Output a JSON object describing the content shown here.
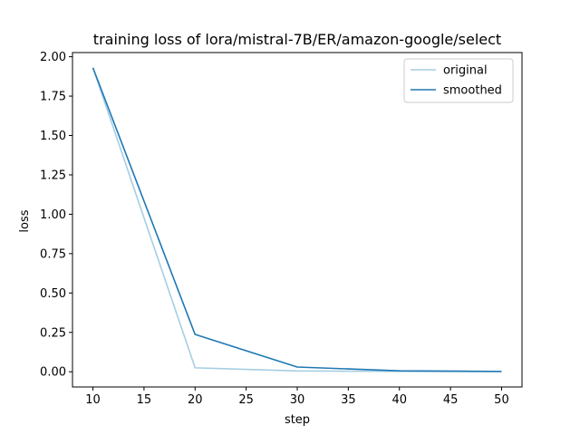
{
  "chart_data": {
    "type": "line",
    "title": "training loss of lora/mistral-7B/ER/amazon-google/select",
    "xlabel": "step",
    "ylabel": "loss",
    "xlim": [
      8.0,
      52.0
    ],
    "ylim": [
      -0.0965,
      2.0265
    ],
    "xticks": [
      10,
      15,
      20,
      25,
      30,
      35,
      40,
      45,
      50
    ],
    "yticks": [
      0.0,
      0.25,
      0.5,
      0.75,
      1.0,
      1.25,
      1.5,
      1.75,
      2.0
    ],
    "xtick_labels": [
      "10",
      "15",
      "20",
      "25",
      "30",
      "35",
      "40",
      "45",
      "50"
    ],
    "ytick_labels": [
      "0.00",
      "0.25",
      "0.50",
      "0.75",
      "1.00",
      "1.25",
      "1.50",
      "1.75",
      "2.00"
    ],
    "x": [
      10,
      20,
      30,
      40,
      50
    ],
    "series": [
      {
        "name": "original",
        "color": "#a6cee3",
        "values": [
          1.93,
          0.025,
          0.005,
          0.002,
          0.001
        ]
      },
      {
        "name": "smoothed",
        "color": "#1f78b4",
        "values": [
          1.93,
          0.237,
          0.03,
          0.006,
          0.002
        ]
      }
    ],
    "legend_position": "top-right",
    "grid": false
  }
}
